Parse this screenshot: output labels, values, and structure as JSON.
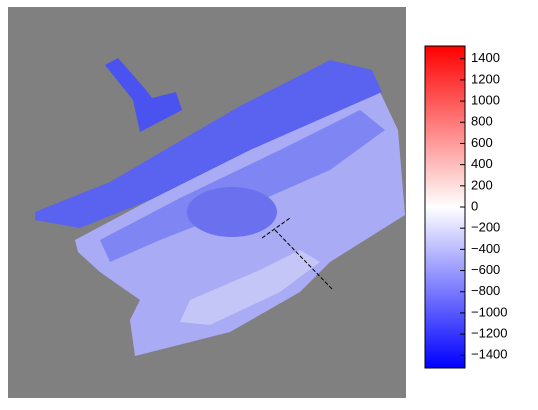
{
  "colorbar": {
    "lim": [
      -1520,
      1520
    ],
    "colors": [
      "#0000ff",
      "#ffffff",
      "#ff0000"
    ],
    "ticks": [
      1400,
      1200,
      1000,
      800,
      600,
      400,
      200,
      0,
      {
        "value": -200,
        "label": "−200"
      },
      {
        "value": -400,
        "label": "−400"
      },
      {
        "value": -600,
        "label": "−600"
      },
      {
        "value": -800,
        "label": "−800"
      },
      {
        "value": -1000,
        "label": "−1000"
      },
      {
        "value": -1200,
        "label": "−1200"
      },
      {
        "value": -1400,
        "label": "−1400"
      }
    ]
  }
}
